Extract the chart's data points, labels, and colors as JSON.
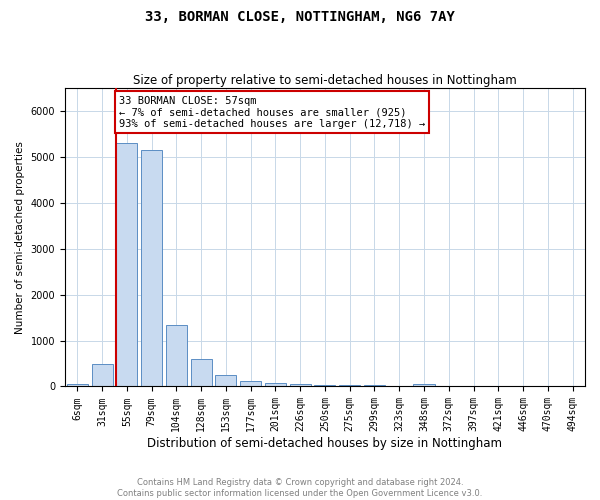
{
  "title": "33, BORMAN CLOSE, NOTTINGHAM, NG6 7AY",
  "subtitle": "Size of property relative to semi-detached houses in Nottingham",
  "xlabel": "Distribution of semi-detached houses by size in Nottingham",
  "ylabel": "Number of semi-detached properties",
  "footer1": "Contains HM Land Registry data © Crown copyright and database right 2024.",
  "footer2": "Contains public sector information licensed under the Open Government Licence v3.0.",
  "annotation_line1": "33 BORMAN CLOSE: 57sqm",
  "annotation_line2": "← 7% of semi-detached houses are smaller (925)",
  "annotation_line3": "93% of semi-detached houses are larger (12,718) →",
  "property_size": 57,
  "ylim": [
    0,
    6500
  ],
  "bar_labels": [
    "6sqm",
    "31sqm",
    "55sqm",
    "79sqm",
    "104sqm",
    "128sqm",
    "153sqm",
    "177sqm",
    "201sqm",
    "226sqm",
    "250sqm",
    "275sqm",
    "299sqm",
    "323sqm",
    "348sqm",
    "372sqm",
    "397sqm",
    "421sqm",
    "446sqm",
    "470sqm",
    "494sqm"
  ],
  "bar_values": [
    50,
    500,
    5300,
    5150,
    1350,
    600,
    250,
    130,
    80,
    50,
    30,
    25,
    30,
    0,
    45,
    0,
    0,
    0,
    0,
    0,
    0
  ],
  "bar_color": "#c8daf0",
  "bar_edge_color": "#5b8ec4",
  "red_line_color": "#cc0000",
  "annotation_box_color": "#ffffff",
  "annotation_box_edge": "#cc0000",
  "background_color": "#ffffff",
  "grid_color": "#c8d8e8",
  "title_fontsize": 10,
  "subtitle_fontsize": 8.5,
  "ylabel_fontsize": 7.5,
  "xlabel_fontsize": 8.5,
  "tick_fontsize": 7,
  "annotation_fontsize": 7.5,
  "footer_fontsize": 6
}
